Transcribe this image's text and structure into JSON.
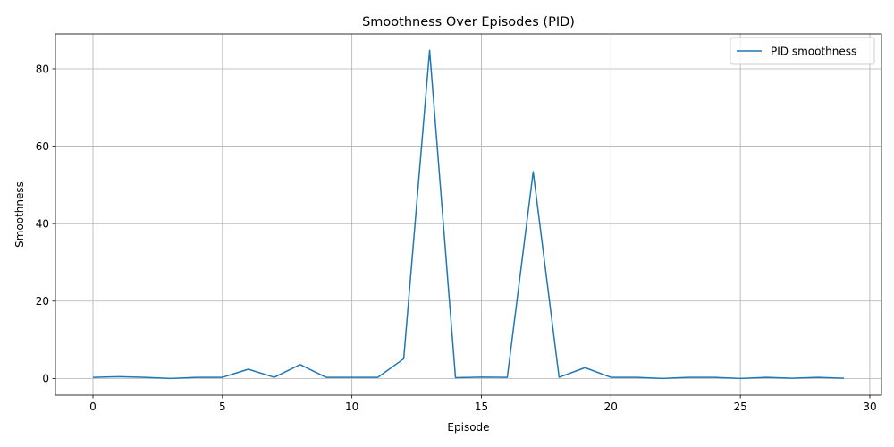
{
  "chart_data": {
    "type": "line",
    "title": "Smoothness Over Episodes (PID)",
    "xlabel": "Episode",
    "ylabel": "Smoothness",
    "xlim": [
      -1.45,
      30.45
    ],
    "ylim": [
      -4.3,
      89.0
    ],
    "xticks": [
      0,
      5,
      10,
      15,
      20,
      25,
      30
    ],
    "yticks": [
      0,
      20,
      40,
      60,
      80
    ],
    "grid": true,
    "legend_position": "top-right",
    "series": [
      {
        "name": "PID smoothness",
        "color": "#1f77b4",
        "x": [
          0,
          1,
          2,
          3,
          4,
          5,
          6,
          7,
          8,
          9,
          10,
          11,
          12,
          13,
          14,
          15,
          16,
          17,
          18,
          19,
          20,
          21,
          22,
          23,
          24,
          25,
          26,
          27,
          28,
          29
        ],
        "values": [
          0.3,
          0.45,
          0.3,
          0.0,
          0.3,
          0.3,
          2.4,
          0.3,
          3.6,
          0.3,
          0.3,
          0.3,
          5.1,
          84.8,
          0.2,
          0.35,
          0.3,
          53.4,
          0.3,
          2.8,
          0.3,
          0.3,
          0.0,
          0.3,
          0.3,
          0.0,
          0.3,
          0.05,
          0.3,
          0.05
        ]
      }
    ]
  }
}
